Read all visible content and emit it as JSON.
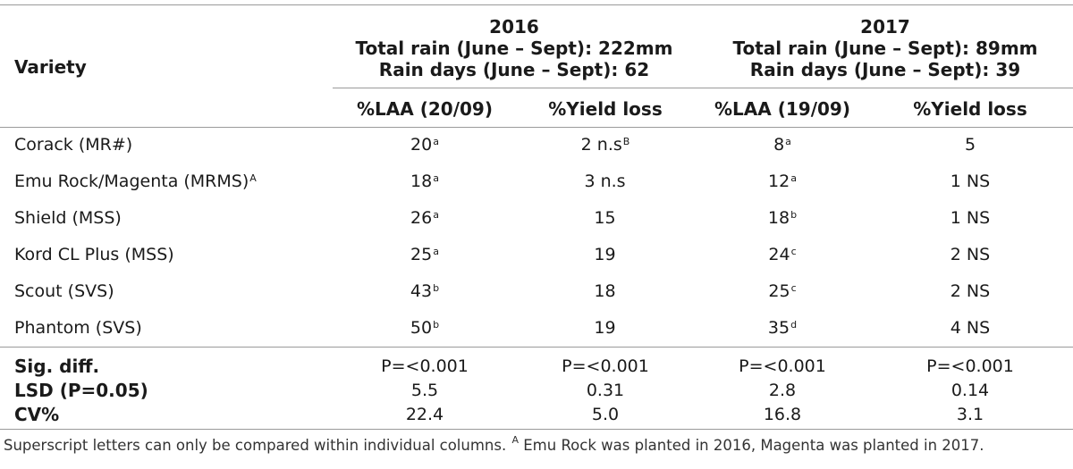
{
  "header": {
    "variety_label": "Variety",
    "y2016": {
      "year": "2016",
      "rain": "Total rain (June – Sept): 222mm",
      "days": "Rain days (June – Sept): 62"
    },
    "y2017": {
      "year": "2017",
      "rain": "Total rain (June – Sept): 89mm",
      "days": "Rain days (June – Sept): 39"
    },
    "cols": [
      "%LAA (20/09)",
      "%Yield loss",
      "%LAA (19/09)",
      "%Yield loss"
    ]
  },
  "rows": [
    {
      "variety": "Corack (MR#)",
      "variety_sup": "",
      "laa16": "20",
      "laa16_sup": "a",
      "yl16": "2 n.s",
      "yl16_sup": "B",
      "laa17": "8",
      "laa17_sup": "a",
      "yl17": "5"
    },
    {
      "variety": "Emu Rock/Magenta (MRMS)",
      "variety_sup": "A",
      "laa16": "18",
      "laa16_sup": "a",
      "yl16": "3 n.s",
      "yl16_sup": "",
      "laa17": "12",
      "laa17_sup": "a",
      "yl17": "1 NS"
    },
    {
      "variety": "Shield (MSS)",
      "variety_sup": "",
      "laa16": "26",
      "laa16_sup": "a",
      "yl16": "15",
      "yl16_sup": "",
      "laa17": "18",
      "laa17_sup": "b",
      "yl17": "1 NS"
    },
    {
      "variety": "Kord CL Plus (MSS)",
      "variety_sup": "",
      "laa16": "25",
      "laa16_sup": "a",
      "yl16": "19",
      "yl16_sup": "",
      "laa17": "24",
      "laa17_sup": "c",
      "yl17": "2 NS"
    },
    {
      "variety": "Scout (SVS)",
      "variety_sup": "",
      "laa16": "43",
      "laa16_sup": "b",
      "yl16": "18",
      "yl16_sup": "",
      "laa17": "25",
      "laa17_sup": "c",
      "yl17": "2 NS"
    },
    {
      "variety": "Phantom (SVS)",
      "variety_sup": "",
      "laa16": "50",
      "laa16_sup": "b",
      "yl16": "19",
      "yl16_sup": "",
      "laa17": "35",
      "laa17_sup": "d",
      "yl17": "4 NS"
    }
  ],
  "stats": [
    {
      "label": "Sig. diff.",
      "v": [
        "P=<0.001",
        "P=<0.001",
        "P=<0.001",
        "P=<0.001"
      ]
    },
    {
      "label": "LSD (P=0.05)",
      "v": [
        "5.5",
        "0.31",
        "2.8",
        "0.14"
      ]
    },
    {
      "label": "CV%",
      "v": [
        "22.4",
        "5.0",
        "16.8",
        "3.1"
      ]
    }
  ],
  "footnote": {
    "part1": "Superscript letters can only be compared within individual columns. ",
    "sup": "A",
    "part2": " Emu Rock was planted in 2016, Magenta was planted in 2017."
  }
}
